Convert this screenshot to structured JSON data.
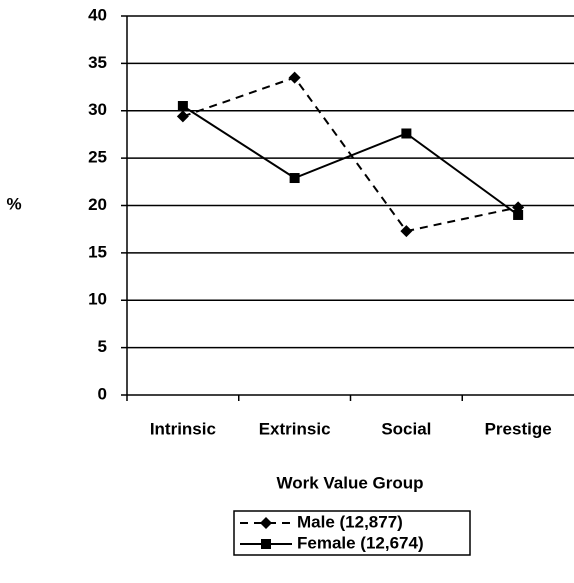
{
  "chart_data": {
    "type": "line",
    "categories": [
      "Intrinsic",
      "Extrinsic",
      "Social",
      "Prestige"
    ],
    "series": [
      {
        "name": "Male (12,877)",
        "color": "#000000",
        "line_style": "dashed",
        "marker": "diamond",
        "values": [
          29.4,
          33.5,
          17.3,
          19.8
        ]
      },
      {
        "name": "Female (12,674)",
        "color": "#000000",
        "line_style": "solid",
        "marker": "square",
        "values": [
          30.5,
          22.9,
          27.6,
          19.0
        ]
      }
    ],
    "ylabel": "%",
    "xlabel": "Work Value Group",
    "ylim": [
      0,
      40
    ],
    "yticks": [
      0,
      5,
      10,
      15,
      20,
      25,
      30,
      35,
      40
    ],
    "grid": true
  }
}
